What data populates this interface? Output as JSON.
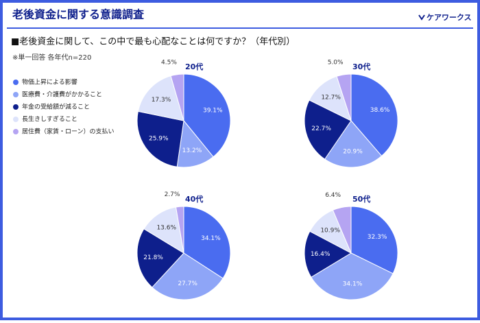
{
  "header": {
    "title": "老後資金に関する意識調査",
    "logo": "ケアワークス"
  },
  "question": "■老後資金に関して、この中で最も心配なことは何ですか？（年代別）",
  "note": "※単一回答 各年代n=220",
  "legend": {
    "labels": [
      "物価上昇による影響",
      "医療費・介護費がかかること",
      "年金の受給額が減ること",
      "長生きしすぎること",
      "居住費（家賃・ローン）の支払い"
    ],
    "colors": [
      "#4a6cf0",
      "#8ea5f7",
      "#0e1f8c",
      "#dde3fb",
      "#b5a4f2"
    ]
  },
  "chart_data": [
    {
      "type": "pie",
      "title": "20代",
      "values": [
        39.1,
        13.2,
        25.9,
        17.3,
        4.5
      ],
      "value_labels": [
        "39.1%",
        "13.2%",
        "25.9%",
        "17.3%",
        "4.5%"
      ]
    },
    {
      "type": "pie",
      "title": "30代",
      "values": [
        38.6,
        20.9,
        22.7,
        12.7,
        5.0
      ],
      "value_labels": [
        "38.6%",
        "20.9%",
        "22.7%",
        "12.7%",
        "5.0%"
      ]
    },
    {
      "type": "pie",
      "title": "40代",
      "values": [
        34.1,
        27.7,
        21.8,
        13.6,
        2.7
      ],
      "value_labels": [
        "34.1%",
        "27.7%",
        "21.8%",
        "13.6%",
        "2.7%"
      ]
    },
    {
      "type": "pie",
      "title": "50代",
      "values": [
        32.3,
        34.1,
        16.4,
        10.9,
        6.4
      ],
      "value_labels": [
        "32.3%",
        "34.1%",
        "16.4%",
        "10.9%",
        "6.4%"
      ]
    }
  ]
}
